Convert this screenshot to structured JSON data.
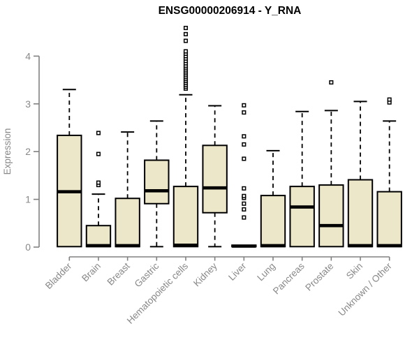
{
  "title": "ENSG00000206914 - Y_RNA",
  "chart_data": {
    "type": "boxplot",
    "title": "ENSG00000206914 - Y_RNA",
    "xlabel": "",
    "ylabel": "Expression",
    "ylim": [
      0,
      4.65
    ],
    "yticks": [
      0,
      1,
      2,
      3,
      4
    ],
    "grid": false,
    "legend": "none",
    "colors": {
      "box_fill": "#EDE7C9",
      "box_stroke": "#000000",
      "median": "#000000",
      "whisker": "#000000",
      "axis": "#808080",
      "labels": "#888888",
      "title": "#000000",
      "background": "#ffffff",
      "outlier_fill": "#ffffff"
    },
    "categories": [
      "Bladder",
      "Brain",
      "Breast",
      "Gastric",
      "Hematopoietic cells",
      "Kidney",
      "Liver",
      "Lung",
      "Pancreas",
      "Prostate",
      "Skin",
      "Unknown / Other"
    ],
    "boxes": [
      {
        "category": "Bladder",
        "whisker_low": 0,
        "q1": 0.01,
        "median": 1.16,
        "q3": 2.34,
        "whisker_high": 3.3,
        "outliers": []
      },
      {
        "category": "Brain",
        "whisker_low": 0,
        "q1": 0.01,
        "median": 0.03,
        "q3": 0.45,
        "whisker_high": 1.11,
        "outliers": [
          1.3,
          1.35,
          1.95,
          2.39
        ]
      },
      {
        "category": "Breast",
        "whisker_low": 0,
        "q1": 0.01,
        "median": 0.03,
        "q3": 1.02,
        "whisker_high": 2.41,
        "outliers": []
      },
      {
        "category": "Gastric",
        "whisker_low": 0.01,
        "q1": 0.91,
        "median": 1.18,
        "q3": 1.82,
        "whisker_high": 2.64,
        "outliers": []
      },
      {
        "category": "Hematopoietic cells",
        "whisker_low": 0,
        "q1": 0.01,
        "median": 0.04,
        "q3": 1.27,
        "whisker_high": 3.19,
        "outliers": [
          3.32,
          3.36,
          3.4,
          3.44,
          3.48,
          3.52,
          3.56,
          3.6,
          3.64,
          3.68,
          3.72,
          3.76,
          3.8,
          3.85,
          3.9,
          3.95,
          4.0,
          4.05,
          4.1,
          4.32,
          4.46,
          4.59
        ]
      },
      {
        "category": "Kidney",
        "whisker_low": 0.01,
        "q1": 0.72,
        "median": 1.24,
        "q3": 2.13,
        "whisker_high": 2.96,
        "outliers": []
      },
      {
        "category": "Liver",
        "whisker_low": 0,
        "q1": 0.01,
        "median": 0.02,
        "q3": 0.04,
        "whisker_high": 0.05,
        "outliers": [
          0.62,
          0.79,
          0.91,
          1.03,
          1.07,
          1.23,
          1.85,
          2.15,
          2.32,
          2.82,
          2.97
        ]
      },
      {
        "category": "Lung",
        "whisker_low": 0,
        "q1": 0.01,
        "median": 0.03,
        "q3": 1.08,
        "whisker_high": 2.02,
        "outliers": []
      },
      {
        "category": "Pancreas",
        "whisker_low": 0,
        "q1": 0.01,
        "median": 0.84,
        "q3": 1.27,
        "whisker_high": 2.84,
        "outliers": []
      },
      {
        "category": "Prostate",
        "whisker_low": 0,
        "q1": 0.01,
        "median": 0.45,
        "q3": 1.3,
        "whisker_high": 2.86,
        "outliers": [
          3.45
        ]
      },
      {
        "category": "Skin",
        "whisker_low": 0,
        "q1": 0.01,
        "median": 0.03,
        "q3": 1.41,
        "whisker_high": 3.05,
        "outliers": []
      },
      {
        "category": "Unknown / Other",
        "whisker_low": 0,
        "q1": 0.01,
        "median": 0.03,
        "q3": 1.16,
        "whisker_high": 2.64,
        "outliers": [
          3.03,
          3.09
        ]
      }
    ]
  }
}
